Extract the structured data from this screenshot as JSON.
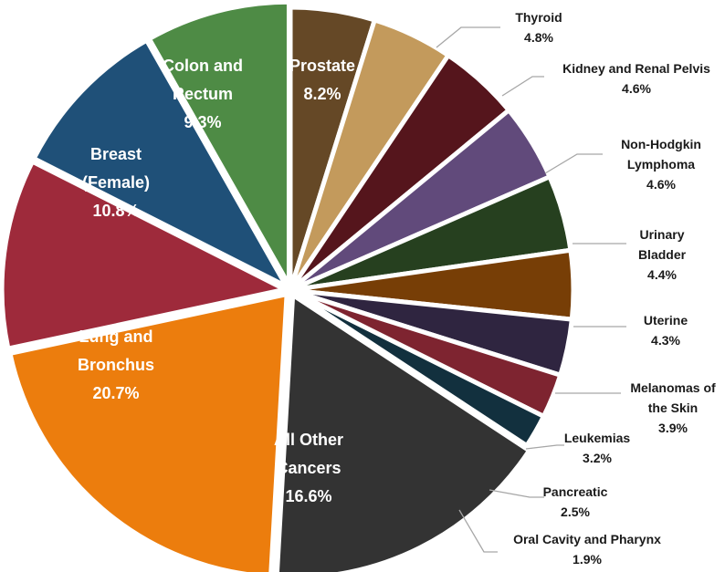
{
  "chart_data": {
    "type": "pie",
    "slices": [
      {
        "name": "Thyroid",
        "value": 4.8,
        "value_label": "4.8%",
        "label_lines": [
          "Thyroid"
        ],
        "color": "#654826",
        "label_position": "outside"
      },
      {
        "name": "Kidney and Renal Pelvis",
        "value": 4.6,
        "value_label": "4.6%",
        "label_lines": [
          "Kidney and Renal Pelvis"
        ],
        "color": "#c39a5c",
        "label_position": "outside"
      },
      {
        "name": "Non-Hodgkin Lymphoma",
        "value": 4.6,
        "value_label": "4.6%",
        "label_lines": [
          "Non-Hodgkin",
          "Lymphoma"
        ],
        "color": "#55151c",
        "label_position": "outside"
      },
      {
        "name": "Urinary Bladder",
        "value": 4.4,
        "value_label": "4.4%",
        "label_lines": [
          "Urinary",
          "Bladder"
        ],
        "color": "#614a7b",
        "label_position": "outside"
      },
      {
        "name": "Uterine",
        "value": 4.3,
        "value_label": "4.3%",
        "label_lines": [
          "Uterine"
        ],
        "color": "#26401f",
        "label_position": "outside"
      },
      {
        "name": "Melanomas of the Skin",
        "value": 3.9,
        "value_label": "3.9%",
        "label_lines": [
          "Melanomas of",
          "the Skin"
        ],
        "color": "#773e06",
        "label_position": "outside"
      },
      {
        "name": "Leukemias",
        "value": 3.2,
        "value_label": "3.2%",
        "label_lines": [
          "Leukemias"
        ],
        "color": "#2f2540",
        "label_position": "outside"
      },
      {
        "name": "Pancreatic",
        "value": 2.5,
        "value_label": "2.5%",
        "label_lines": [
          "Pancreatic"
        ],
        "color": "#7e2430",
        "label_position": "outside"
      },
      {
        "name": "Oral Cavity and Pharynx",
        "value": 1.9,
        "value_label": "1.9%",
        "label_lines": [
          "Oral Cavity and Pharynx"
        ],
        "color": "#12303e",
        "label_position": "outside"
      },
      {
        "name": "All Other Cancers",
        "value": 16.6,
        "value_label": "16.6%",
        "label_lines": [
          "All Other",
          "Cancers"
        ],
        "color": "#333333",
        "label_position": "inside"
      },
      {
        "name": "Lung and Bronchus",
        "value": 20.7,
        "value_label": "20.7%",
        "label_lines": [
          "Lung and",
          "Bronchus"
        ],
        "color": "#ec7d0d",
        "label_position": "inside"
      },
      {
        "name": "Breast (Female)",
        "value": 10.8,
        "value_label": "10.8%",
        "label_lines": [
          "Breast",
          "(Female)"
        ],
        "color": "#9e2a3b",
        "label_position": "inside"
      },
      {
        "name": "Colon and Rectum",
        "value": 9.3,
        "value_label": "9.3%",
        "label_lines": [
          "Colon and",
          "Rectum"
        ],
        "color": "#1f5078",
        "label_position": "inside"
      },
      {
        "name": "Prostate",
        "value": 8.2,
        "value_label": "8.2%",
        "label_lines": [
          "Prostate"
        ],
        "color": "#4e8b45",
        "label_position": "inside"
      }
    ],
    "start": "12 o'clock",
    "direction": "clockwise",
    "legend": "none",
    "title": ""
  }
}
